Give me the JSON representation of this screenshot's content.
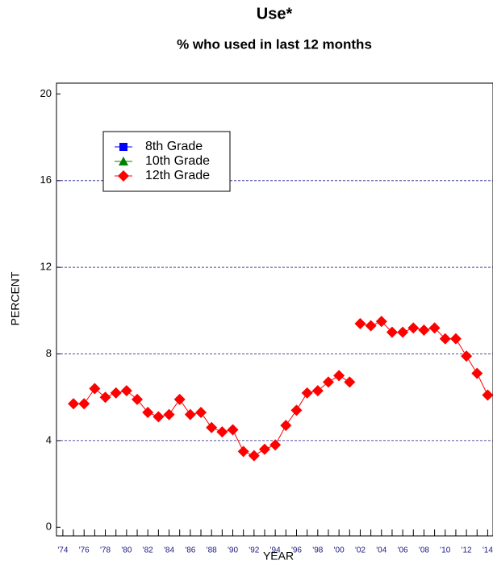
{
  "chart_data": {
    "type": "line",
    "title": "Use*",
    "subtitle": "% who used in last 12 months",
    "x_label": "YEAR",
    "y_label": "PERCENT",
    "xlim": [
      1973.4,
      2014.5
    ],
    "ylim": [
      -0.4,
      20.5
    ],
    "xticks": [
      {
        "value": 1974,
        "label": "'74"
      },
      {
        "value": 1976,
        "label": "'76"
      },
      {
        "value": 1978,
        "label": "'78"
      },
      {
        "value": 1980,
        "label": "'80"
      },
      {
        "value": 1982,
        "label": "'82"
      },
      {
        "value": 1984,
        "label": "'84"
      },
      {
        "value": 1986,
        "label": "'86"
      },
      {
        "value": 1988,
        "label": "'88"
      },
      {
        "value": 1990,
        "label": "'90"
      },
      {
        "value": 1992,
        "label": "'92"
      },
      {
        "value": 1994,
        "label": "'94"
      },
      {
        "value": 1996,
        "label": "'96"
      },
      {
        "value": 1998,
        "label": "'98"
      },
      {
        "value": 2000,
        "label": "'00"
      },
      {
        "value": 2002,
        "label": "'02"
      },
      {
        "value": 2004,
        "label": "'04"
      },
      {
        "value": 2006,
        "label": "'06"
      },
      {
        "value": 2008,
        "label": "'08"
      },
      {
        "value": 2010,
        "label": "'10"
      },
      {
        "value": 2012,
        "label": "'12"
      },
      {
        "value": 2014,
        "label": "'14"
      }
    ],
    "xminorticks": [
      1975,
      1977,
      1979,
      1981,
      1983,
      1985,
      1987,
      1989,
      1991,
      1993,
      1995,
      1997,
      1999,
      2001,
      2003,
      2005,
      2007,
      2009,
      2011,
      2013
    ],
    "yticks": [
      0,
      4,
      8,
      12,
      16,
      20
    ],
    "grid": true,
    "legend": "upper left",
    "series": [
      {
        "name": "8th Grade",
        "color": "#0000ff",
        "marker": "square",
        "x": [],
        "values": []
      },
      {
        "name": "10th Grade",
        "color": "#008000",
        "marker": "triangle",
        "x": [],
        "values": []
      },
      {
        "name": "12th Grade",
        "color": "#ff0000",
        "marker": "diamond",
        "x": [
          1975,
          1976,
          1977,
          1978,
          1979,
          1980,
          1981,
          1982,
          1983,
          1984,
          1985,
          1986,
          1987,
          1988,
          1989,
          1990,
          1991,
          1992,
          1993,
          1994,
          1995,
          1996,
          1997,
          1998,
          1999,
          2000,
          2001
        ],
        "values": [
          5.7,
          5.7,
          6.4,
          6.0,
          6.2,
          6.3,
          5.9,
          5.3,
          5.1,
          5.2,
          5.9,
          5.2,
          5.3,
          4.6,
          4.4,
          4.5,
          3.5,
          3.3,
          3.6,
          3.8,
          4.7,
          5.4,
          6.2,
          6.3,
          6.7,
          7.0,
          6.7
        ]
      },
      {
        "color": "#ff0000",
        "marker": "diamond",
        "x": [
          2002,
          2003,
          2004,
          2005,
          2006,
          2007,
          2008,
          2009,
          2010,
          2011,
          2012,
          2013,
          2014
        ],
        "values": [
          9.4,
          9.3,
          9.5,
          9.0,
          9.0,
          9.2,
          9.1,
          9.2,
          8.7,
          8.7,
          7.9,
          7.1,
          6.1
        ]
      }
    ]
  }
}
